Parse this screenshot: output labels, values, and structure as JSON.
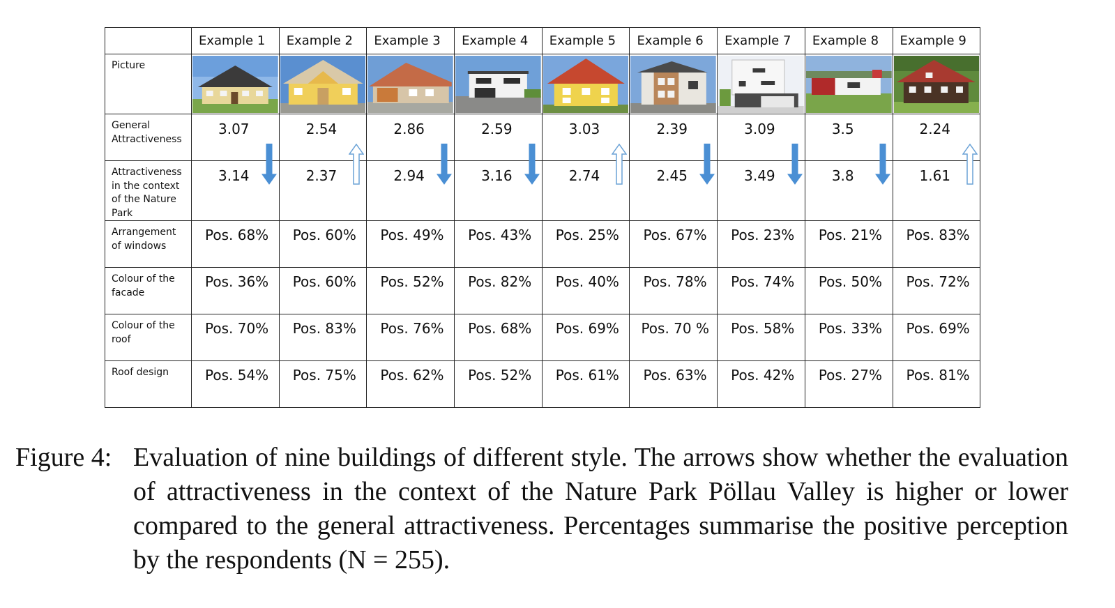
{
  "table": {
    "corner": "",
    "columns": [
      "Example 1",
      "Example 2",
      "Example 3",
      "Example 4",
      "Example 5",
      "Example 6",
      "Example 7",
      "Example 8",
      "Example 9"
    ],
    "row_labels": {
      "picture": "Picture",
      "general": "General Attractiveness",
      "context": "Attractiveness in the context of the Nature Park",
      "windows": "Arrangement of windows",
      "facade": "Colour of the facade",
      "roof_colour": "Colour of the roof",
      "roof_design": "Roof design"
    },
    "general": [
      "3.07",
      "2.54",
      "2.86",
      "2.59",
      "3.03",
      "2.39",
      "3.09",
      "3.5",
      "2.24"
    ],
    "context": [
      "3.14",
      "2.37",
      "2.94",
      "3.16",
      "2.74",
      "2.45",
      "3.49",
      "3.8",
      "1.61"
    ],
    "arrows": [
      "down",
      "up",
      "down",
      "down",
      "up",
      "down",
      "down",
      "down",
      "up"
    ],
    "windows": [
      "Pos. 68%",
      "Pos. 60%",
      "Pos. 49%",
      "Pos. 43%",
      "Pos. 25%",
      "Pos. 67%",
      "Pos. 23%",
      "Pos. 21%",
      "Pos. 83%"
    ],
    "facade": [
      "Pos. 36%",
      "Pos. 60%",
      "Pos. 52%",
      "Pos. 82%",
      "Pos. 40%",
      "Pos. 78%",
      "Pos. 74%",
      "Pos. 50%",
      "Pos. 72%"
    ],
    "roof_colour": [
      "Pos. 70%",
      "Pos. 83%",
      "Pos. 76%",
      "Pos. 68%",
      "Pos. 69%",
      "Pos. 70 %",
      "Pos. 58%",
      "Pos. 33%",
      "Pos. 69%"
    ],
    "roof_design": [
      "Pos. 54%",
      "Pos. 75%",
      "Pos. 62%",
      "Pos. 52%",
      "Pos. 61%",
      "Pos. 63%",
      "Pos. 42%",
      "Pos. 27%",
      "Pos. 81%"
    ]
  },
  "colors": {
    "arrow_down": "#4a8fd4",
    "arrow_up_fill": "#ffffff",
    "arrow_up_stroke": "#6aa2d6"
  },
  "caption": {
    "label": "Figure 4:",
    "text": "Evaluation of nine buildings of different style. The arrows show whether the evaluation of attractiveness in the context of the Nature Park Pöllau Valley is higher or lower compared to the general attractiveness. Percentages summarise the positive perception by the respondents (N = 255)."
  }
}
